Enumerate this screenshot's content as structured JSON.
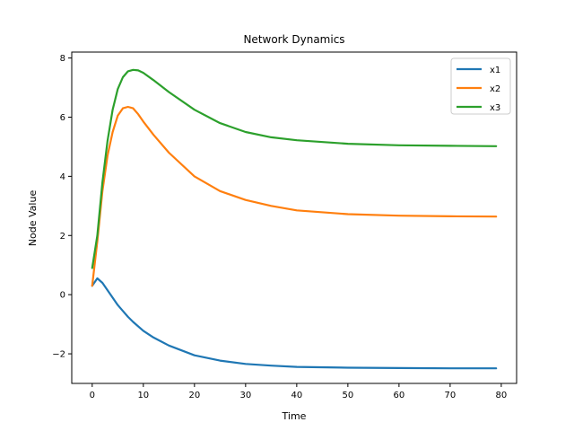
{
  "chart_data": {
    "type": "line",
    "title": "Network Dynamics",
    "xlabel": "Time",
    "ylabel": "Node Value",
    "xlim": [
      -4,
      83
    ],
    "ylim": [
      -3.0,
      8.2
    ],
    "xticks": [
      0,
      10,
      20,
      30,
      40,
      50,
      60,
      70,
      80
    ],
    "yticks": [
      -2,
      0,
      2,
      4,
      6,
      8
    ],
    "ytick_labels": [
      "−2",
      "0",
      "2",
      "4",
      "6",
      "8"
    ],
    "grid": false,
    "legend": "top-right",
    "series": [
      {
        "name": "x1",
        "color": "#1f77b4",
        "x": [
          0,
          1,
          2,
          3,
          4,
          5,
          6,
          7,
          8,
          10,
          12,
          15,
          20,
          25,
          30,
          35,
          40,
          50,
          60,
          70,
          79
        ],
        "y": [
          0.3,
          0.55,
          0.4,
          0.15,
          -0.1,
          -0.35,
          -0.55,
          -0.75,
          -0.92,
          -1.22,
          -1.45,
          -1.72,
          -2.05,
          -2.23,
          -2.34,
          -2.4,
          -2.44,
          -2.47,
          -2.48,
          -2.49,
          -2.49
        ]
      },
      {
        "name": "x2",
        "color": "#ff7f0e",
        "x": [
          0,
          1,
          2,
          3,
          4,
          5,
          6,
          7,
          8,
          9,
          10,
          12,
          15,
          20,
          25,
          30,
          35,
          40,
          50,
          60,
          70,
          79
        ],
        "y": [
          0.3,
          1.8,
          3.5,
          4.7,
          5.5,
          6.05,
          6.3,
          6.35,
          6.3,
          6.1,
          5.85,
          5.4,
          4.8,
          4.0,
          3.5,
          3.2,
          3.0,
          2.85,
          2.72,
          2.67,
          2.65,
          2.64
        ]
      },
      {
        "name": "x3",
        "color": "#2ca02c",
        "x": [
          0,
          1,
          2,
          3,
          4,
          5,
          6,
          7,
          8,
          9,
          10,
          12,
          15,
          20,
          25,
          30,
          35,
          40,
          50,
          60,
          70,
          79
        ],
        "y": [
          0.9,
          2.0,
          3.8,
          5.2,
          6.25,
          6.95,
          7.35,
          7.55,
          7.6,
          7.58,
          7.5,
          7.25,
          6.85,
          6.25,
          5.8,
          5.5,
          5.32,
          5.22,
          5.1,
          5.05,
          5.03,
          5.02
        ]
      }
    ]
  }
}
